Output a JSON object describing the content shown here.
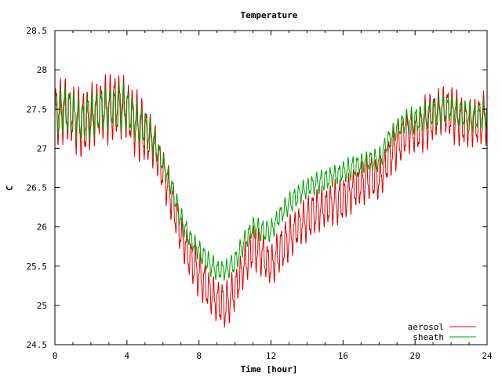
{
  "chart_data": {
    "type": "line",
    "title": "Temperature",
    "xlabel": "Time [hour]",
    "ylabel": "C",
    "xlim": [
      0,
      24
    ],
    "ylim": [
      24.5,
      28.5
    ],
    "xticks": [
      0,
      4,
      8,
      12,
      16,
      20,
      24
    ],
    "yticks": [
      24.5,
      25,
      25.5,
      26,
      26.5,
      27,
      27.5,
      28,
      28.5
    ],
    "ytick_labels": [
      "24.5",
      "25",
      "25.5",
      "26",
      "26.5",
      "27",
      "27.5",
      "28",
      "28.5"
    ],
    "grid": false,
    "legend_position": "bottom-right",
    "oscillation_period_hours": 0.25,
    "series": [
      {
        "name": "aerosol",
        "color": "#e00000",
        "x": [
          0,
          0.5,
          1,
          1.5,
          2,
          2.5,
          3,
          3.5,
          4,
          4.5,
          5,
          5.5,
          6,
          6.5,
          7,
          7.5,
          8,
          8.5,
          9,
          9.5,
          10,
          10.5,
          11,
          11.5,
          12,
          12.5,
          13,
          13.5,
          14,
          14.5,
          15,
          15.5,
          16,
          16.5,
          17,
          17.5,
          18,
          18.5,
          19,
          19.5,
          20,
          20.5,
          21,
          21.5,
          22,
          22.5,
          23,
          23.5,
          24
        ],
        "y": [
          27.4,
          27.5,
          27.4,
          27.3,
          27.4,
          27.5,
          27.5,
          27.55,
          27.5,
          27.3,
          27.2,
          27.05,
          26.7,
          26.35,
          25.9,
          25.6,
          25.4,
          25.2,
          25.05,
          25.0,
          25.2,
          25.5,
          25.75,
          25.65,
          25.5,
          25.7,
          25.85,
          26.0,
          26.1,
          26.2,
          26.25,
          26.3,
          26.35,
          26.45,
          26.55,
          26.65,
          26.6,
          26.85,
          27.05,
          27.2,
          27.2,
          27.3,
          27.4,
          27.5,
          27.45,
          27.35,
          27.3,
          27.35,
          27.4
        ],
        "amplitude": [
          0.45,
          0.45,
          0.45,
          0.45,
          0.45,
          0.45,
          0.45,
          0.45,
          0.45,
          0.45,
          0.4,
          0.35,
          0.3,
          0.3,
          0.3,
          0.3,
          0.3,
          0.3,
          0.3,
          0.3,
          0.3,
          0.3,
          0.3,
          0.3,
          0.3,
          0.3,
          0.3,
          0.3,
          0.3,
          0.3,
          0.3,
          0.3,
          0.3,
          0.3,
          0.3,
          0.3,
          0.3,
          0.3,
          0.3,
          0.3,
          0.3,
          0.35,
          0.35,
          0.35,
          0.35,
          0.35,
          0.35,
          0.35,
          0.35
        ]
      },
      {
        "name": "sheath",
        "color": "#00a000",
        "x": [
          0,
          0.5,
          1,
          1.5,
          2,
          2.5,
          3,
          3.5,
          4,
          4.5,
          5,
          5.5,
          6,
          6.5,
          7,
          7.5,
          8,
          8.5,
          9,
          9.5,
          10,
          10.5,
          11,
          11.5,
          12,
          12.5,
          13,
          13.5,
          14,
          14.5,
          15,
          15.5,
          16,
          16.5,
          17,
          17.5,
          18,
          18.5,
          19,
          19.5,
          20,
          20.5,
          21,
          21.5,
          22,
          22.5,
          23,
          23.5,
          24
        ],
        "y": [
          27.45,
          27.5,
          27.45,
          27.35,
          27.4,
          27.5,
          27.5,
          27.55,
          27.5,
          27.35,
          27.25,
          27.1,
          26.8,
          26.5,
          26.1,
          25.85,
          25.7,
          25.55,
          25.45,
          25.45,
          25.55,
          25.8,
          26.0,
          25.95,
          25.95,
          26.15,
          26.3,
          26.4,
          26.5,
          26.55,
          26.6,
          26.65,
          26.7,
          26.75,
          26.8,
          26.85,
          26.85,
          27.1,
          27.25,
          27.35,
          27.35,
          27.4,
          27.45,
          27.5,
          27.5,
          27.45,
          27.4,
          27.4,
          27.45
        ],
        "amplitude": [
          0.3,
          0.3,
          0.3,
          0.3,
          0.3,
          0.3,
          0.3,
          0.3,
          0.3,
          0.3,
          0.25,
          0.2,
          0.15,
          0.15,
          0.15,
          0.15,
          0.15,
          0.15,
          0.15,
          0.15,
          0.15,
          0.15,
          0.15,
          0.15,
          0.15,
          0.15,
          0.15,
          0.15,
          0.15,
          0.15,
          0.15,
          0.15,
          0.15,
          0.15,
          0.15,
          0.15,
          0.15,
          0.15,
          0.15,
          0.15,
          0.2,
          0.2,
          0.2,
          0.2,
          0.2,
          0.2,
          0.2,
          0.2,
          0.2
        ]
      }
    ]
  }
}
